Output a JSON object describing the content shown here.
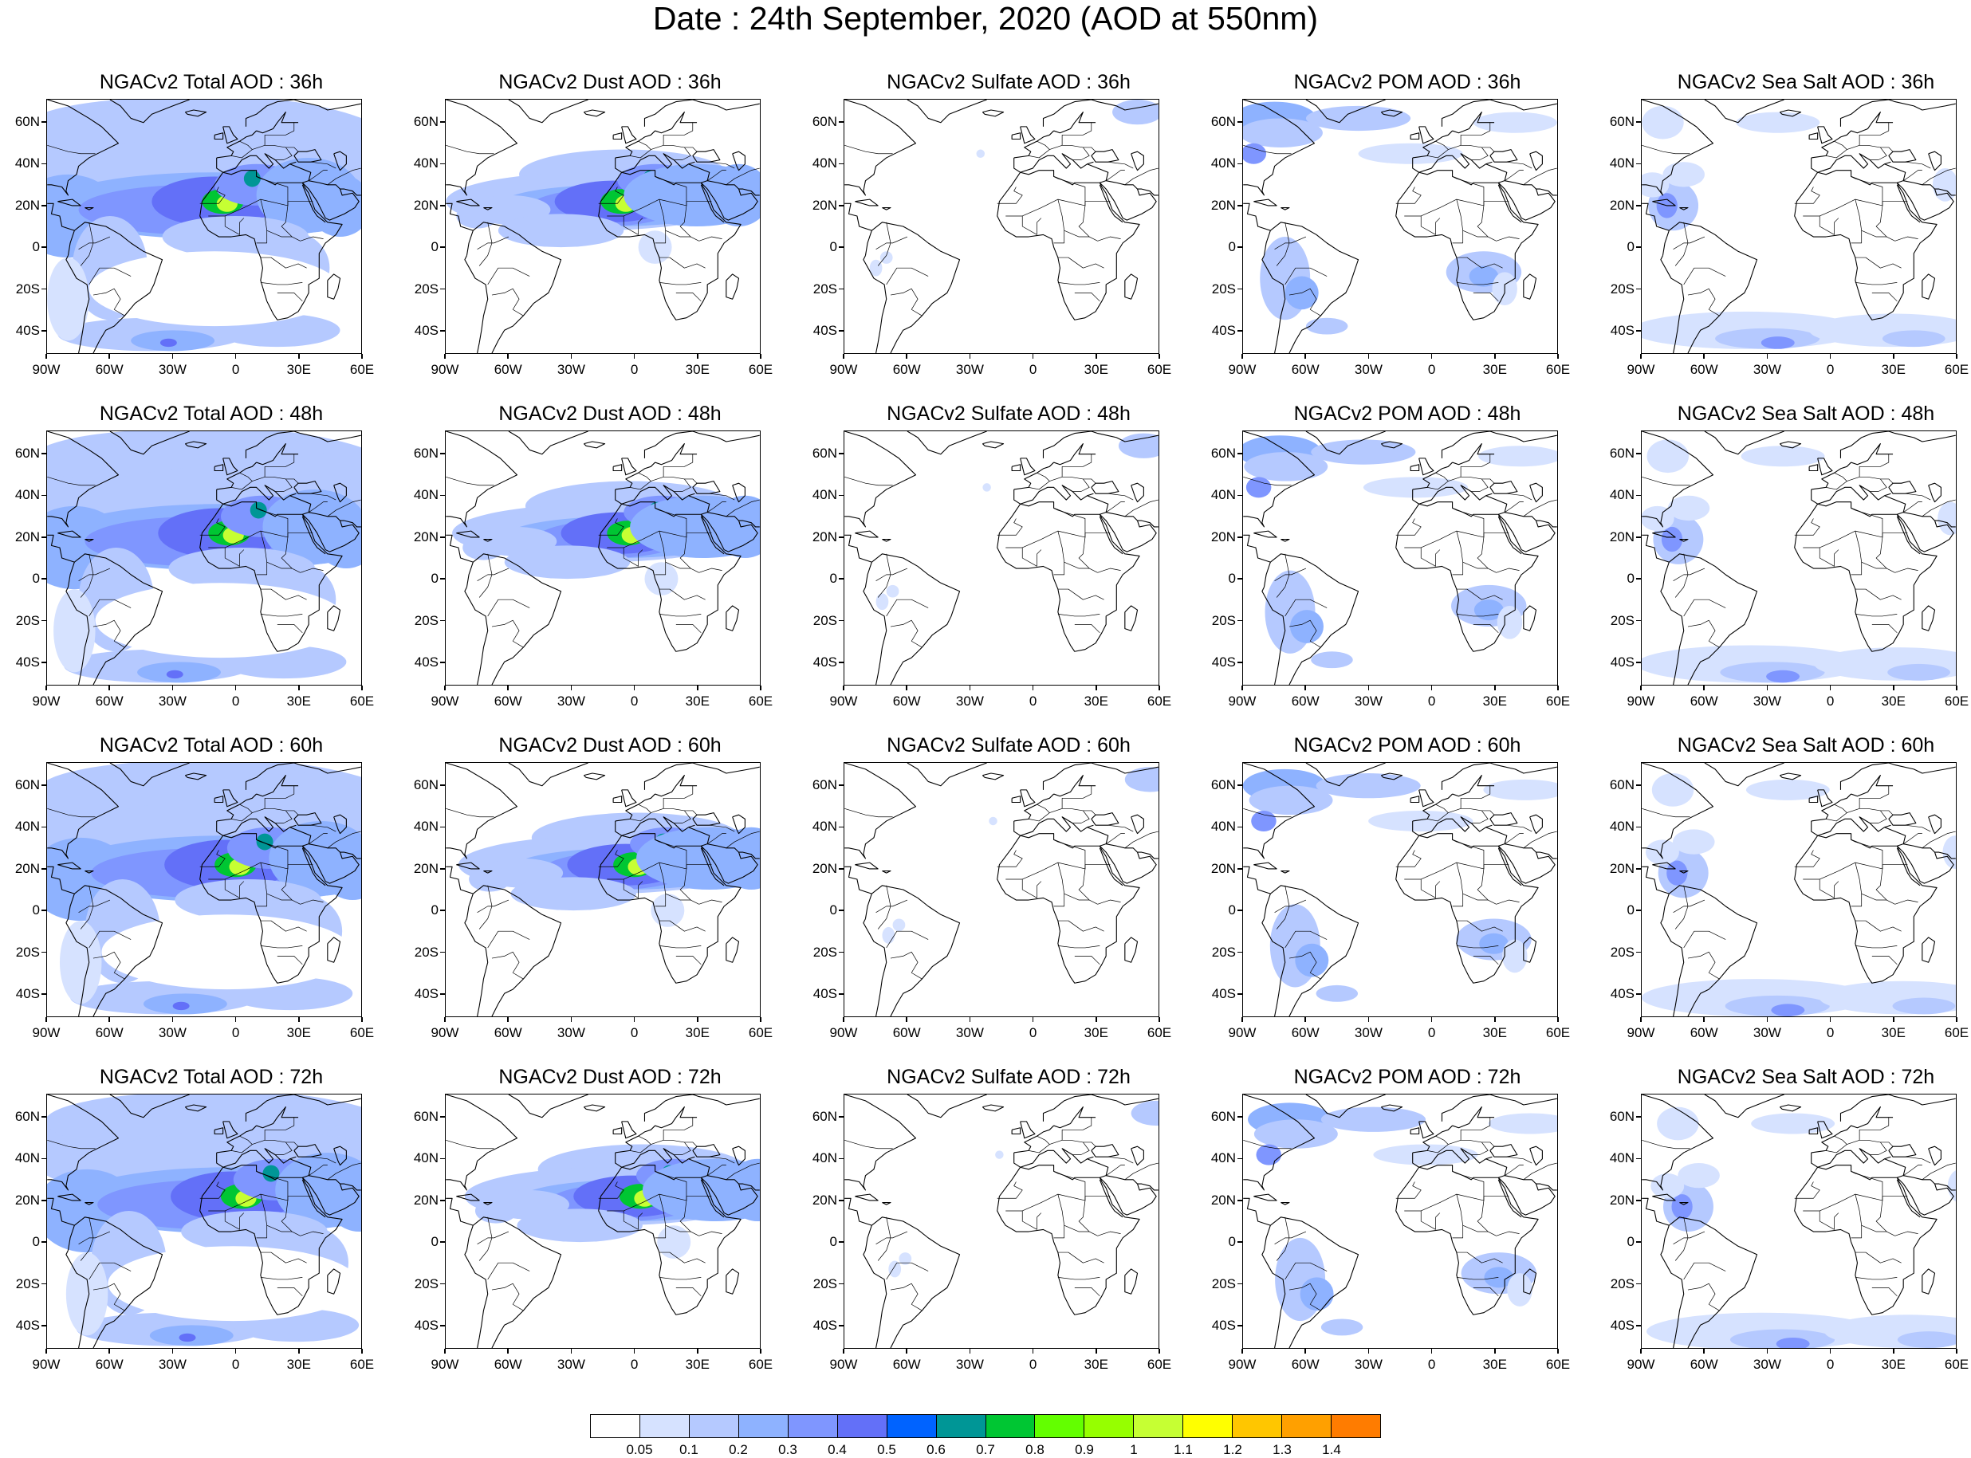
{
  "title": "Date : 24th September, 2020 (AOD at 550nm)",
  "lat_labels": [
    "60N",
    "40N",
    "20N",
    "0",
    "20S",
    "40S"
  ],
  "lat_values": [
    60,
    40,
    20,
    0,
    -20,
    -40
  ],
  "lon_labels": [
    "90W",
    "60W",
    "30W",
    "0",
    "30E",
    "60E"
  ],
  "lon_values": [
    -90,
    -60,
    -30,
    0,
    30,
    60
  ],
  "map_extent": {
    "lon_min": -90,
    "lon_max": 60,
    "lat_min": -51,
    "lat_max": 71
  },
  "rows": [
    "36h",
    "48h",
    "60h",
    "72h"
  ],
  "panels": [
    [
      {
        "title": "NGACv2 Total AOD : 36h",
        "species": "total"
      },
      {
        "title": "NGACv2 Dust AOD : 36h",
        "species": "dust"
      },
      {
        "title": "NGACv2 Sulfate AOD : 36h",
        "species": "sulfate"
      },
      {
        "title": "NGACv2 POM AOD : 36h",
        "species": "pom"
      },
      {
        "title": "NGACv2 Sea Salt AOD : 36h",
        "species": "seasalt"
      }
    ],
    [
      {
        "title": "NGACv2 Total AOD : 48h",
        "species": "total"
      },
      {
        "title": "NGACv2 Dust AOD : 48h",
        "species": "dust"
      },
      {
        "title": "NGACv2 Sulfate AOD : 48h",
        "species": "sulfate"
      },
      {
        "title": "NGACv2 POM AOD : 48h",
        "species": "pom"
      },
      {
        "title": "NGACv2 Sea Salt AOD : 48h",
        "species": "seasalt"
      }
    ],
    [
      {
        "title": "NGACv2 Total AOD : 60h",
        "species": "total"
      },
      {
        "title": "NGACv2 Dust AOD : 60h",
        "species": "dust"
      },
      {
        "title": "NGACv2 Sulfate AOD : 60h",
        "species": "sulfate"
      },
      {
        "title": "NGACv2 POM AOD : 60h",
        "species": "pom"
      },
      {
        "title": "NGACv2 Sea Salt AOD : 60h",
        "species": "seasalt"
      }
    ],
    [
      {
        "title": "NGACv2 Total AOD : 72h",
        "species": "total"
      },
      {
        "title": "NGACv2 Dust AOD : 72h",
        "species": "dust"
      },
      {
        "title": "NGACv2 Sulfate AOD : 72h",
        "species": "sulfate"
      },
      {
        "title": "NGACv2 POM AOD : 72h",
        "species": "pom"
      },
      {
        "title": "NGACv2 Sea Salt  AOD : 72h",
        "species": "seasalt"
      }
    ]
  ],
  "pom_xlabels_72h": [
    "90W",
    "60W",
    "30W",
    "0",
    "30E",
    "60E"
  ],
  "colorbar": {
    "labels": [
      "0.05",
      "0.1",
      "0.2",
      "0.3",
      "0.4",
      "0.5",
      "0.6",
      "0.7",
      "0.8",
      "0.9",
      "1",
      "1.1",
      "1.2",
      "1.3",
      "1.4"
    ],
    "colors": [
      "#ffffff",
      "#d6e2ff",
      "#b5c9ff",
      "#8eb2ff",
      "#7f96ff",
      "#6370f8",
      "#0063ff",
      "#009696",
      "#00c633",
      "#63ff00",
      "#96ff00",
      "#c6ff33",
      "#ffff00",
      "#ffc600",
      "#ffa000",
      "#ff7c00",
      "#ff1900"
    ]
  }
}
